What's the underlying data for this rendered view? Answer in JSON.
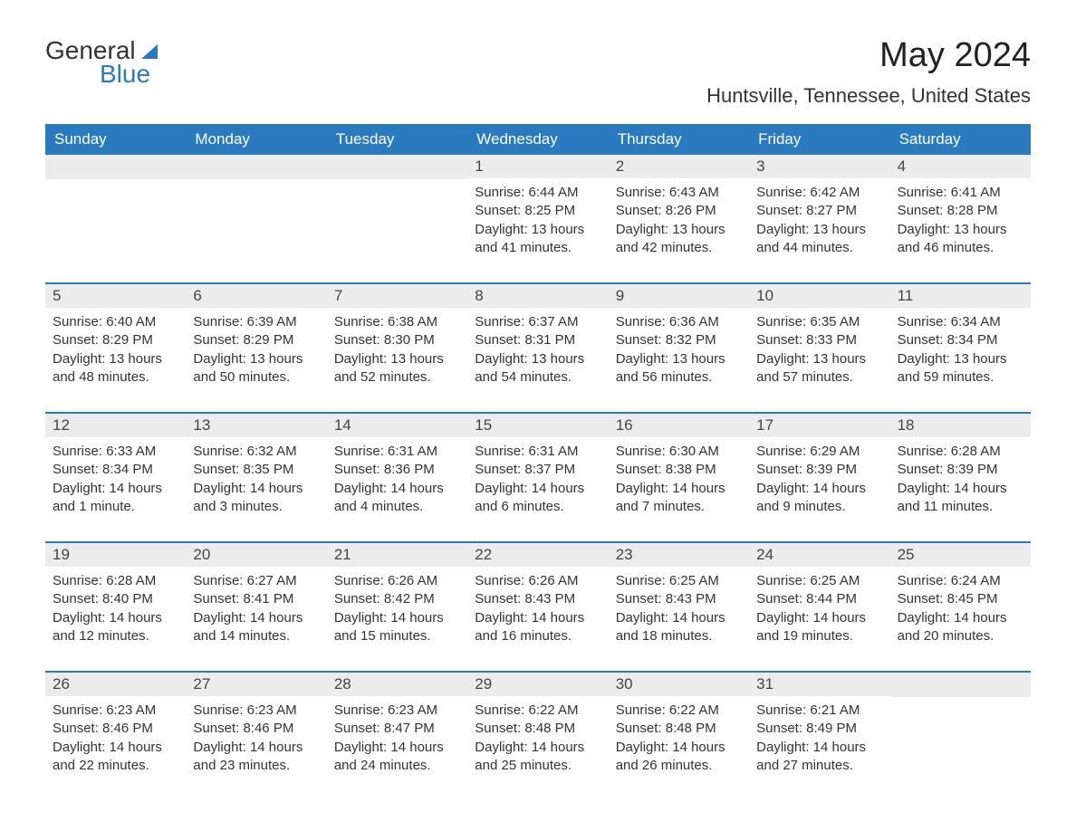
{
  "logo": {
    "word1": "General",
    "word2": "Blue"
  },
  "title": "May 2024",
  "location": "Huntsville, Tennessee, United States",
  "weekdays": [
    "Sunday",
    "Monday",
    "Tuesday",
    "Wednesday",
    "Thursday",
    "Friday",
    "Saturday"
  ],
  "colors": {
    "header_bg": "#2a7ac0",
    "daynum_bg": "#ececec",
    "text": "#333333",
    "border": "#2a7ac0"
  },
  "weeks": [
    [
      null,
      null,
      null,
      {
        "n": "1",
        "sunrise": "Sunrise: 6:44 AM",
        "sunset": "Sunset: 8:25 PM",
        "daylight": "Daylight: 13 hours and 41 minutes."
      },
      {
        "n": "2",
        "sunrise": "Sunrise: 6:43 AM",
        "sunset": "Sunset: 8:26 PM",
        "daylight": "Daylight: 13 hours and 42 minutes."
      },
      {
        "n": "3",
        "sunrise": "Sunrise: 6:42 AM",
        "sunset": "Sunset: 8:27 PM",
        "daylight": "Daylight: 13 hours and 44 minutes."
      },
      {
        "n": "4",
        "sunrise": "Sunrise: 6:41 AM",
        "sunset": "Sunset: 8:28 PM",
        "daylight": "Daylight: 13 hours and 46 minutes."
      }
    ],
    [
      {
        "n": "5",
        "sunrise": "Sunrise: 6:40 AM",
        "sunset": "Sunset: 8:29 PM",
        "daylight": "Daylight: 13 hours and 48 minutes."
      },
      {
        "n": "6",
        "sunrise": "Sunrise: 6:39 AM",
        "sunset": "Sunset: 8:29 PM",
        "daylight": "Daylight: 13 hours and 50 minutes."
      },
      {
        "n": "7",
        "sunrise": "Sunrise: 6:38 AM",
        "sunset": "Sunset: 8:30 PM",
        "daylight": "Daylight: 13 hours and 52 minutes."
      },
      {
        "n": "8",
        "sunrise": "Sunrise: 6:37 AM",
        "sunset": "Sunset: 8:31 PM",
        "daylight": "Daylight: 13 hours and 54 minutes."
      },
      {
        "n": "9",
        "sunrise": "Sunrise: 6:36 AM",
        "sunset": "Sunset: 8:32 PM",
        "daylight": "Daylight: 13 hours and 56 minutes."
      },
      {
        "n": "10",
        "sunrise": "Sunrise: 6:35 AM",
        "sunset": "Sunset: 8:33 PM",
        "daylight": "Daylight: 13 hours and 57 minutes."
      },
      {
        "n": "11",
        "sunrise": "Sunrise: 6:34 AM",
        "sunset": "Sunset: 8:34 PM",
        "daylight": "Daylight: 13 hours and 59 minutes."
      }
    ],
    [
      {
        "n": "12",
        "sunrise": "Sunrise: 6:33 AM",
        "sunset": "Sunset: 8:34 PM",
        "daylight": "Daylight: 14 hours and 1 minute."
      },
      {
        "n": "13",
        "sunrise": "Sunrise: 6:32 AM",
        "sunset": "Sunset: 8:35 PM",
        "daylight": "Daylight: 14 hours and 3 minutes."
      },
      {
        "n": "14",
        "sunrise": "Sunrise: 6:31 AM",
        "sunset": "Sunset: 8:36 PM",
        "daylight": "Daylight: 14 hours and 4 minutes."
      },
      {
        "n": "15",
        "sunrise": "Sunrise: 6:31 AM",
        "sunset": "Sunset: 8:37 PM",
        "daylight": "Daylight: 14 hours and 6 minutes."
      },
      {
        "n": "16",
        "sunrise": "Sunrise: 6:30 AM",
        "sunset": "Sunset: 8:38 PM",
        "daylight": "Daylight: 14 hours and 7 minutes."
      },
      {
        "n": "17",
        "sunrise": "Sunrise: 6:29 AM",
        "sunset": "Sunset: 8:39 PM",
        "daylight": "Daylight: 14 hours and 9 minutes."
      },
      {
        "n": "18",
        "sunrise": "Sunrise: 6:28 AM",
        "sunset": "Sunset: 8:39 PM",
        "daylight": "Daylight: 14 hours and 11 minutes."
      }
    ],
    [
      {
        "n": "19",
        "sunrise": "Sunrise: 6:28 AM",
        "sunset": "Sunset: 8:40 PM",
        "daylight": "Daylight: 14 hours and 12 minutes."
      },
      {
        "n": "20",
        "sunrise": "Sunrise: 6:27 AM",
        "sunset": "Sunset: 8:41 PM",
        "daylight": "Daylight: 14 hours and 14 minutes."
      },
      {
        "n": "21",
        "sunrise": "Sunrise: 6:26 AM",
        "sunset": "Sunset: 8:42 PM",
        "daylight": "Daylight: 14 hours and 15 minutes."
      },
      {
        "n": "22",
        "sunrise": "Sunrise: 6:26 AM",
        "sunset": "Sunset: 8:43 PM",
        "daylight": "Daylight: 14 hours and 16 minutes."
      },
      {
        "n": "23",
        "sunrise": "Sunrise: 6:25 AM",
        "sunset": "Sunset: 8:43 PM",
        "daylight": "Daylight: 14 hours and 18 minutes."
      },
      {
        "n": "24",
        "sunrise": "Sunrise: 6:25 AM",
        "sunset": "Sunset: 8:44 PM",
        "daylight": "Daylight: 14 hours and 19 minutes."
      },
      {
        "n": "25",
        "sunrise": "Sunrise: 6:24 AM",
        "sunset": "Sunset: 8:45 PM",
        "daylight": "Daylight: 14 hours and 20 minutes."
      }
    ],
    [
      {
        "n": "26",
        "sunrise": "Sunrise: 6:23 AM",
        "sunset": "Sunset: 8:46 PM",
        "daylight": "Daylight: 14 hours and 22 minutes."
      },
      {
        "n": "27",
        "sunrise": "Sunrise: 6:23 AM",
        "sunset": "Sunset: 8:46 PM",
        "daylight": "Daylight: 14 hours and 23 minutes."
      },
      {
        "n": "28",
        "sunrise": "Sunrise: 6:23 AM",
        "sunset": "Sunset: 8:47 PM",
        "daylight": "Daylight: 14 hours and 24 minutes."
      },
      {
        "n": "29",
        "sunrise": "Sunrise: 6:22 AM",
        "sunset": "Sunset: 8:48 PM",
        "daylight": "Daylight: 14 hours and 25 minutes."
      },
      {
        "n": "30",
        "sunrise": "Sunrise: 6:22 AM",
        "sunset": "Sunset: 8:48 PM",
        "daylight": "Daylight: 14 hours and 26 minutes."
      },
      {
        "n": "31",
        "sunrise": "Sunrise: 6:21 AM",
        "sunset": "Sunset: 8:49 PM",
        "daylight": "Daylight: 14 hours and 27 minutes."
      },
      null
    ]
  ]
}
